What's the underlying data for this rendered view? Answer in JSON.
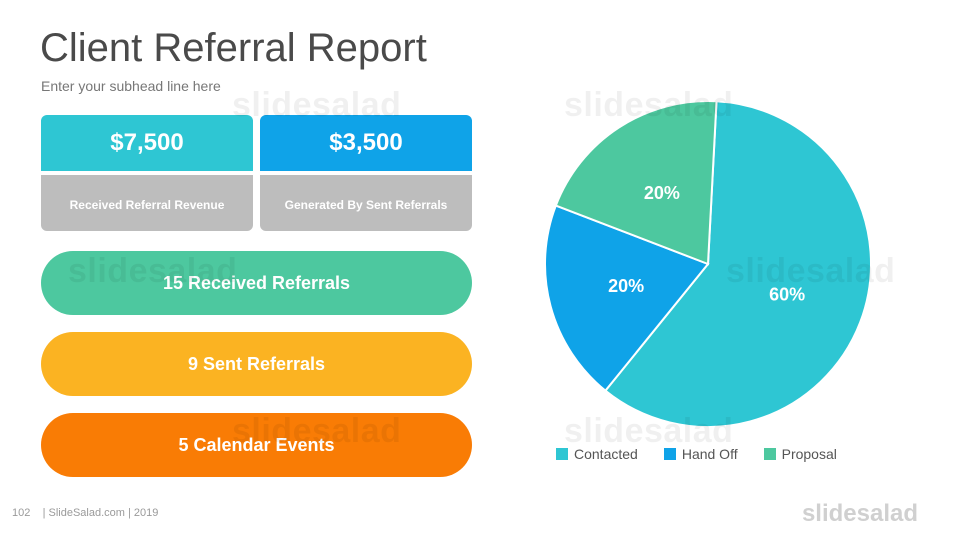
{
  "title": "Client Referral Report",
  "subtitle": "Enter your subhead line here",
  "cards": [
    {
      "value": "$7,500",
      "label": "Received Referral Revenue",
      "color": "#2ec6d3"
    },
    {
      "value": "$3,500",
      "label": "Generated By Sent Referrals",
      "color": "#0fa3e8"
    }
  ],
  "pills": [
    {
      "label": "15 Received Referrals",
      "color": "#4dc89f"
    },
    {
      "label": "9 Sent Referrals",
      "color": "#fbb322"
    },
    {
      "label": "5 Calendar Events",
      "color": "#f97c05"
    }
  ],
  "watermark": "slidesalad",
  "footer": {
    "page_number": "102",
    "credit": "| SlideSalad.com | 2019",
    "logo": "slidesalad"
  },
  "chart_data": {
    "type": "pie",
    "categories": [
      "Contacted",
      "Hand Off",
      "Proposal"
    ],
    "values": [
      60,
      20,
      20
    ],
    "labels": [
      "60%",
      "20%",
      "20%"
    ],
    "colors": [
      "#2ec6d3",
      "#0fa3e8",
      "#4dc89f"
    ],
    "legend_position": "bottom"
  }
}
